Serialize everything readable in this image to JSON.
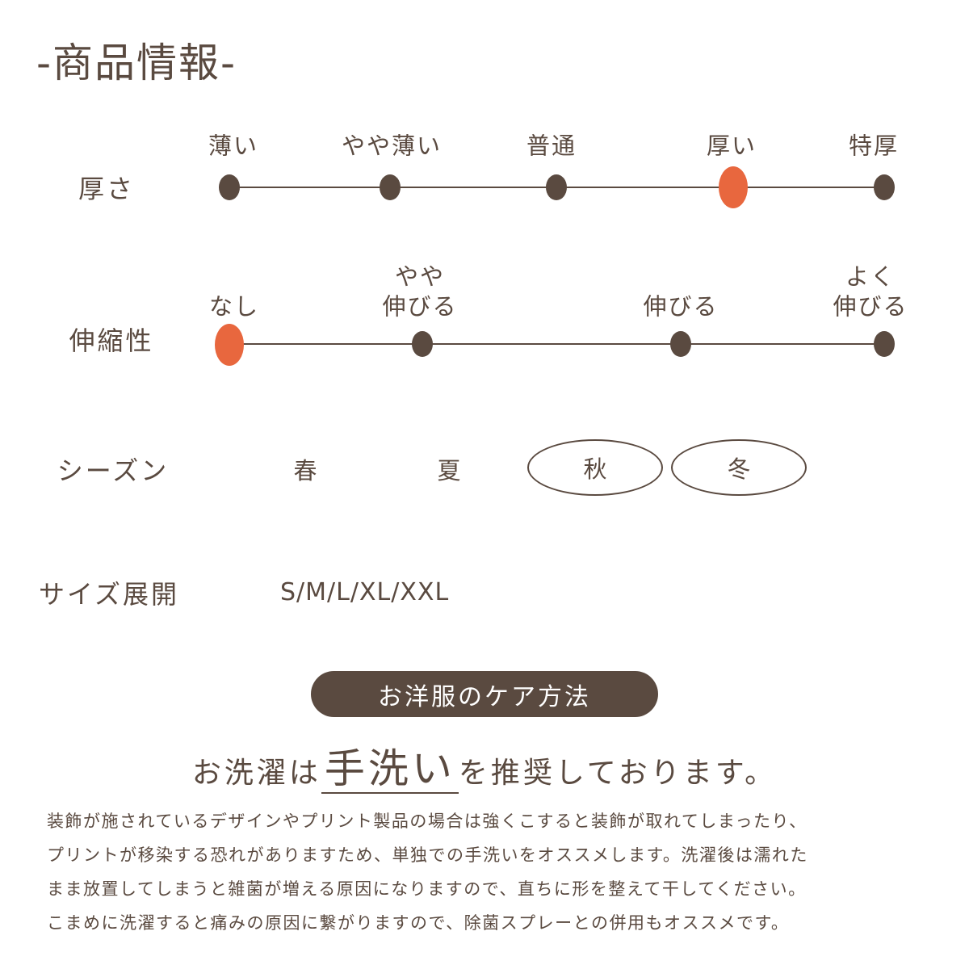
{
  "title": "-商品情報-",
  "colors": {
    "text": "#5a4a40",
    "selected": "#e8673e"
  },
  "thickness": {
    "label": "厚さ",
    "options": [
      "薄い",
      "やや薄い",
      "普通",
      "厚い",
      "特厚"
    ],
    "selected_index": 3
  },
  "stretch": {
    "label": "伸縮性",
    "options": [
      [
        "なし"
      ],
      [
        "やや",
        "伸びる"
      ],
      [
        "伸びる"
      ],
      [
        "よく",
        "伸びる"
      ]
    ],
    "selected_index": 0
  },
  "season": {
    "label": "シーズン",
    "options": [
      "春",
      "夏",
      "秋",
      "冬"
    ],
    "selected": [
      "秋",
      "冬"
    ]
  },
  "sizes": {
    "label": "サイズ展開",
    "value": "S/M/L/XL/XXL"
  },
  "care": {
    "badge": "お洋服のケア方法",
    "headline_pre": "お洗濯は",
    "headline_em": "手洗い",
    "headline_post": "を推奨しております。",
    "body": [
      "装飾が施されているデザインやプリント製品の場合は強くこすると装飾が取れてしまったり、",
      "プリントが移染する恐れがありますため、単独での手洗いをオススメします。洗濯後は濡れた",
      "まま放置してしまうと雑菌が増える原因になりますので、直ちに形を整えて干してください。",
      "こまめに洗濯すると痛みの原因に繋がりますので、除菌スプレーとの併用もオススメです。"
    ]
  }
}
